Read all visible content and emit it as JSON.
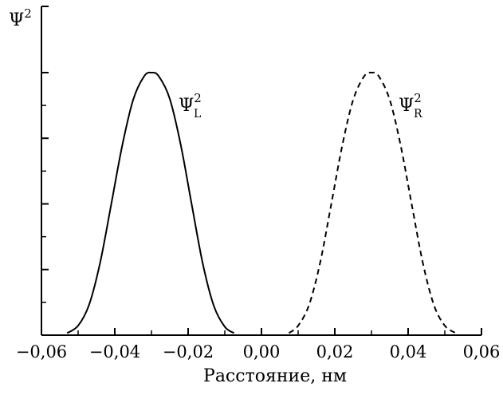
{
  "chart_data": {
    "type": "line",
    "xlabel": "Расстояние, нм",
    "ylabel": "Ψ²",
    "ylabel_base": "Ψ",
    "ylabel_sup": "2",
    "xlim": [
      -0.06,
      0.06
    ],
    "ylim": [
      0,
      1.0
    ],
    "x_ticks": [
      -0.06,
      -0.04,
      -0.02,
      0.0,
      0.02,
      0.04,
      0.06
    ],
    "x_tick_labels": [
      "−0,06",
      "−0,04",
      "−0,02",
      "0,00",
      "0,02",
      "0,04",
      "0,06"
    ],
    "y_ticks": [
      0.25,
      0.5,
      0.75
    ],
    "y_minor_ticks": [
      0.125,
      0.375,
      0.625,
      0.875
    ],
    "grid": false,
    "legend": "none",
    "series": [
      {
        "name": "Ψ²L",
        "label_base": "Ψ",
        "label_sup": "2",
        "label_sub": "L",
        "style": "solid",
        "color": "#000000",
        "x": [
          -0.053,
          -0.05,
          -0.047,
          -0.044,
          -0.041,
          -0.038,
          -0.035,
          -0.032,
          -0.03,
          -0.028,
          -0.025,
          -0.022,
          -0.019,
          -0.016,
          -0.013,
          -0.01,
          -0.0075
        ],
        "y": [
          0.008,
          0.036,
          0.116,
          0.276,
          0.496,
          0.72,
          0.896,
          0.986,
          1.0,
          0.986,
          0.9,
          0.724,
          0.496,
          0.272,
          0.112,
          0.032,
          0.008
        ]
      },
      {
        "name": "Ψ²R",
        "label_base": "Ψ",
        "label_sup": "2",
        "label_sub": "R",
        "style": "dashed",
        "color": "#000000",
        "x": [
          0.0075,
          0.01,
          0.013,
          0.016,
          0.019,
          0.022,
          0.025,
          0.028,
          0.03,
          0.032,
          0.035,
          0.038,
          0.041,
          0.044,
          0.047,
          0.05,
          0.053
        ],
        "y": [
          0.008,
          0.036,
          0.116,
          0.276,
          0.496,
          0.72,
          0.896,
          0.986,
          1.0,
          0.986,
          0.896,
          0.72,
          0.496,
          0.276,
          0.116,
          0.036,
          0.008
        ]
      }
    ]
  }
}
